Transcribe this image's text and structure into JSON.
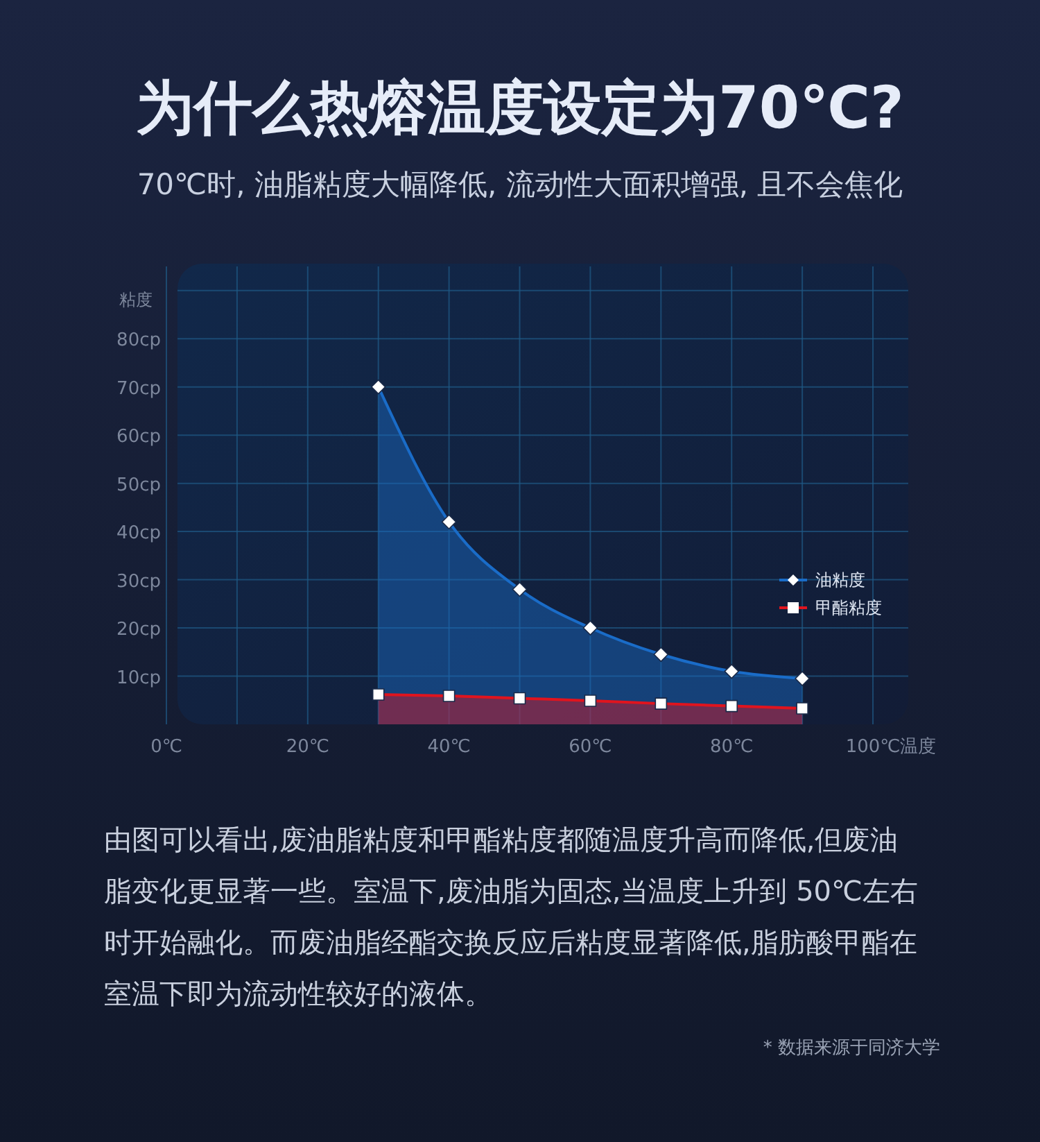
{
  "chart_data": {
    "type": "area",
    "title": "为什么热熔温度设定为70℃?",
    "subtitle": "70℃时, 油脂粘度大幅降低, 流动性大面积增强, 且不会焦化",
    "xlabel": "温度",
    "ylabel": "粘度",
    "x": [
      30,
      40,
      50,
      60,
      70,
      80,
      90
    ],
    "series": [
      {
        "name": "油粘度",
        "color": "#1a6cc8",
        "marker": "diamond",
        "values": [
          70,
          42,
          28,
          20,
          14.5,
          11,
          9.5
        ]
      },
      {
        "name": "甲酯粘度",
        "color": "#e0141e",
        "marker": "square",
        "values": [
          6.2,
          5.9,
          5.4,
          4.9,
          4.3,
          3.8,
          3.3
        ]
      }
    ],
    "xlim": [
      0,
      105
    ],
    "ylim": [
      0,
      95
    ],
    "xticks": [
      {
        "value": 0,
        "label": "0℃"
      },
      {
        "value": 10,
        "label": null
      },
      {
        "value": 20,
        "label": "20℃"
      },
      {
        "value": 30,
        "label": null
      },
      {
        "value": 40,
        "label": "40℃"
      },
      {
        "value": 50,
        "label": null
      },
      {
        "value": 60,
        "label": "60℃"
      },
      {
        "value": 70,
        "label": null
      },
      {
        "value": 80,
        "label": "80℃"
      },
      {
        "value": 90,
        "label": null
      },
      {
        "value": 100,
        "label": "100℃"
      }
    ],
    "yticks": [
      {
        "value": 10,
        "label": "10cp"
      },
      {
        "value": 20,
        "label": "20cp"
      },
      {
        "value": 30,
        "label": "30cp"
      },
      {
        "value": 40,
        "label": "40cp"
      },
      {
        "value": 50,
        "label": "50cp"
      },
      {
        "value": 60,
        "label": "60cp"
      },
      {
        "value": 70,
        "label": "70cp"
      },
      {
        "value": 80,
        "label": "80cp"
      },
      {
        "value": 90,
        "label": null
      }
    ],
    "grid": true,
    "legend": "right",
    "line_style": "solid",
    "annotations": [
      "由图可以看出,废油脂粘度和甲酯粘度都随温度升高而降低,但废油脂变化更显著一些。室温下,废油脂为固态,当温度上升到 50℃左右时开始融化。而废油脂经酯交换反应后粘度显著降低,脂肪酸甲酯在室温下即为流动性较好的液体。",
      "* 数据来源于同济大学"
    ]
  }
}
